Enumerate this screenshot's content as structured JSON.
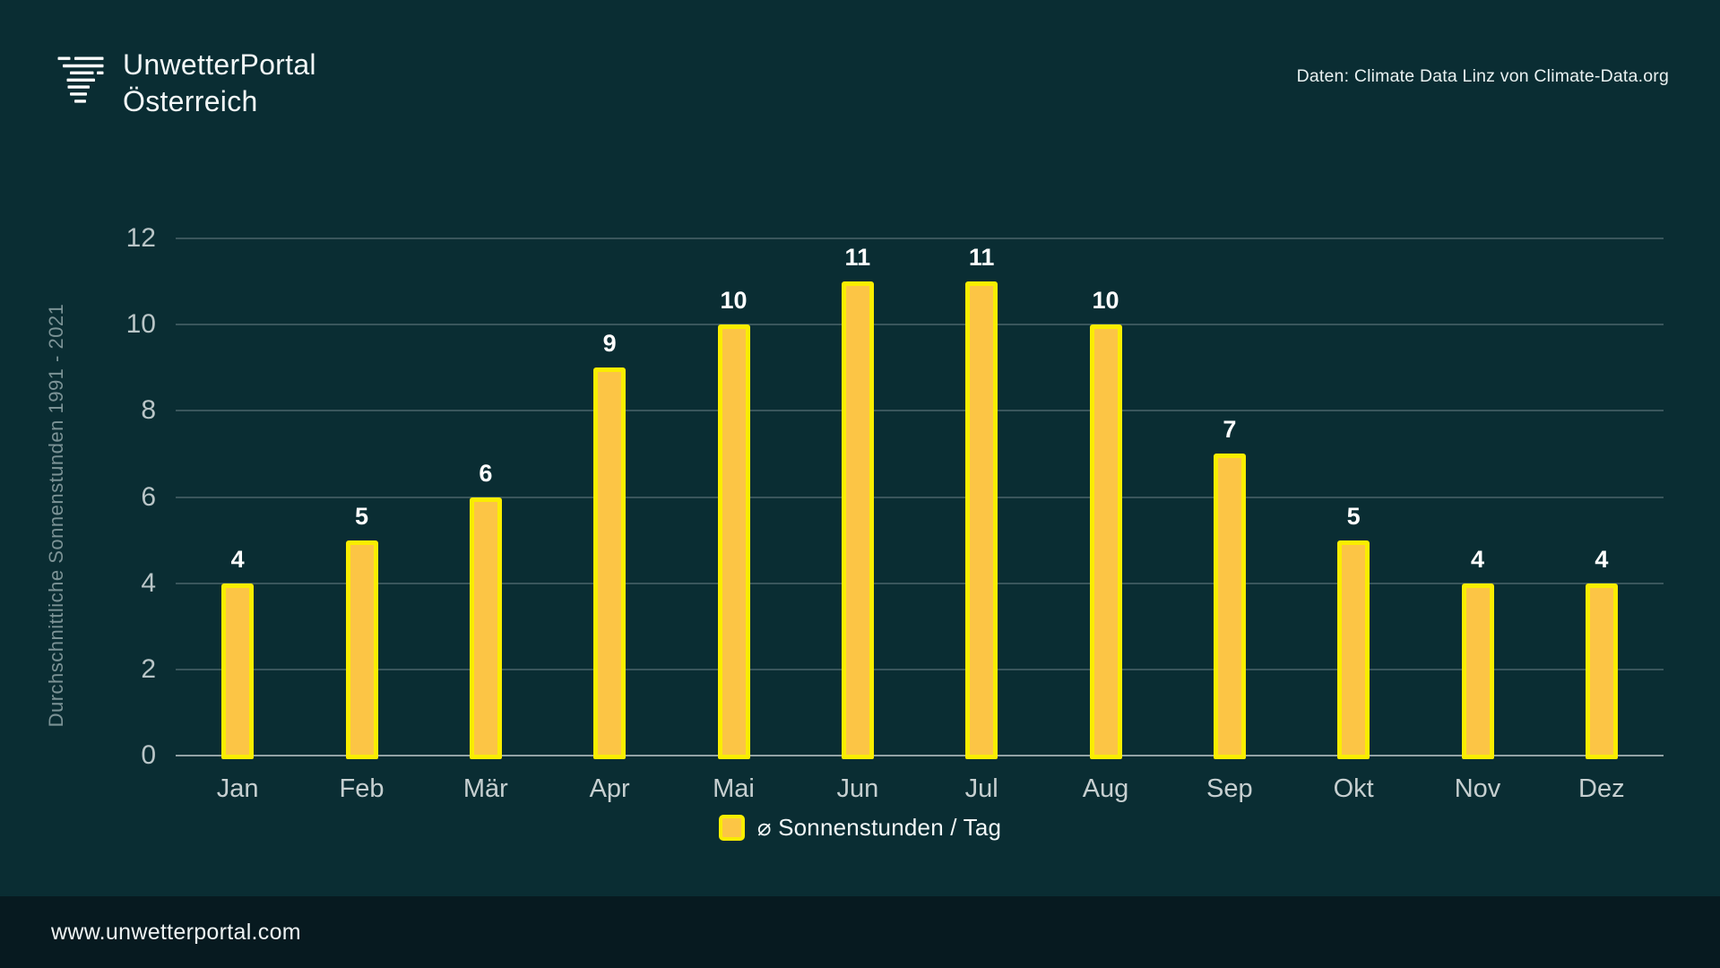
{
  "header": {
    "logo": {
      "line1": "UnwetterPortal",
      "line2": "Österreich"
    },
    "attribution": "Daten: Climate Data Linz von Climate-Data.org"
  },
  "chart_data": {
    "type": "bar",
    "categories": [
      "Jan",
      "Feb",
      "Mär",
      "Apr",
      "Mai",
      "Jun",
      "Jul",
      "Aug",
      "Sep",
      "Okt",
      "Nov",
      "Dez"
    ],
    "values": [
      4,
      5,
      6,
      9,
      10,
      11,
      11,
      10,
      7,
      5,
      4,
      4
    ],
    "ylabel": "Durchschnittliche Sonnenstunden 1991 - 2021",
    "yticks": [
      0,
      2,
      4,
      6,
      8,
      10,
      12
    ],
    "ylim": [
      0,
      12
    ],
    "grid": true,
    "legend": "⌀ Sonnenstunden / Tag",
    "legend_position": "bottom",
    "bar_fill": "#FCC545",
    "bar_border": "#FAED00",
    "value_label_color": "#FFFFFF"
  },
  "footer": {
    "url": "www.unwetterportal.com"
  },
  "colors": {
    "background": "#0A2D33",
    "footer_background": "#071A20",
    "grid_line": "#3A565C",
    "axis_line": "#93A3A6",
    "tick_label": "#B9C5C7",
    "month_label": "#C6CFD0",
    "axis_title": "#7C9396",
    "text": "#F3F8F8"
  }
}
